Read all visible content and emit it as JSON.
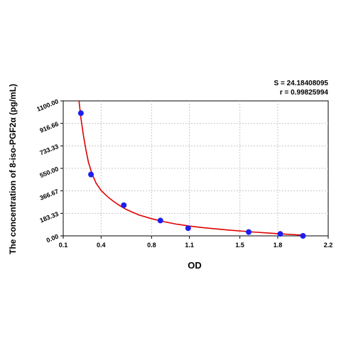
{
  "chart_data": {
    "type": "scatter",
    "title": "",
    "xlabel": "OD",
    "ylabel": "The concentration of 8-iso-PGF2α (pg/mL)",
    "xlim": [
      0.1,
      2.2
    ],
    "ylim": [
      0,
      1100
    ],
    "xticks": [
      "0.1",
      "0.4",
      "0.8",
      "1.1",
      "1.5",
      "1.8",
      "2.2"
    ],
    "xtick_values": [
      0.1,
      0.4,
      0.8,
      1.1,
      1.5,
      1.8,
      2.2
    ],
    "yticks": [
      "0.00",
      "183.33",
      "366.67",
      "550.00",
      "733.33",
      "916.66",
      "1100.00"
    ],
    "ytick_values": [
      0,
      183.33,
      366.67,
      550,
      733.33,
      916.66,
      1100
    ],
    "grid": true,
    "points": {
      "x": [
        0.24,
        0.32,
        0.58,
        0.87,
        1.09,
        1.57,
        1.82,
        2.0
      ],
      "y": [
        1000,
        500,
        250,
        125,
        62.5,
        31.2,
        15.6,
        0
      ]
    },
    "fit_curve": {
      "x": [
        0.225,
        0.24,
        0.26,
        0.28,
        0.3,
        0.33,
        0.36,
        0.4,
        0.45,
        0.5,
        0.55,
        0.6,
        0.7,
        0.8,
        0.9,
        1.0,
        1.1,
        1.2,
        1.4,
        1.6,
        1.8,
        2.0
      ],
      "y": [
        1100,
        960,
        820,
        700,
        600,
        500,
        430,
        370,
        320,
        280,
        245,
        215,
        170,
        140,
        115,
        95,
        80,
        68,
        48,
        32,
        18,
        6
      ]
    },
    "point_color": "#1e1ef0",
    "curve_color": "#e00000"
  },
  "stats": {
    "s_label": "S = 24.18408095",
    "r_label": "r = 0.99825994"
  }
}
